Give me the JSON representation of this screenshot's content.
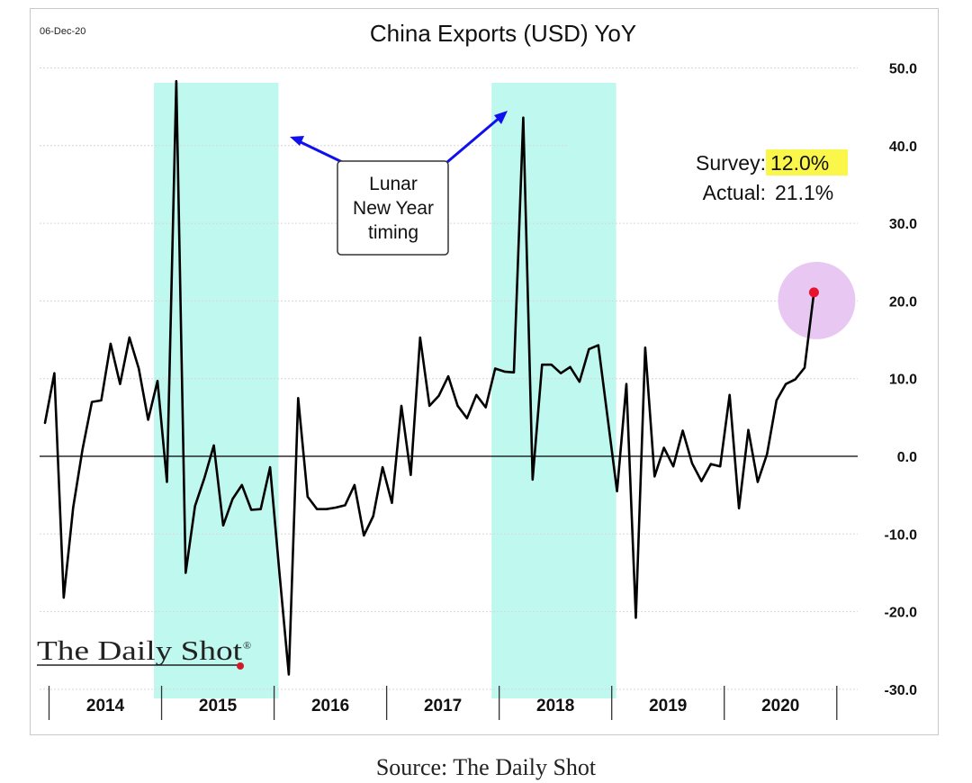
{
  "chart_data": {
    "type": "line",
    "title": "China Exports (USD) YoY",
    "date_stamp": "06-Dec-20",
    "xlabel": "",
    "ylabel": "",
    "ylim": [
      -30,
      50
    ],
    "y_ticks": [
      "50.0",
      "40.0",
      "30.0",
      "20.0",
      "10.0",
      "0.0",
      "-10.0",
      "-20.0",
      "-30.0"
    ],
    "x_year_labels": [
      "2014",
      "2015",
      "2016",
      "2017",
      "2018",
      "2019",
      "2020"
    ],
    "x_axis_side": "bottom",
    "y_axis_side": "right",
    "grid": true,
    "series": [
      {
        "name": "China Exports (USD) YoY",
        "color": "#000000",
        "start": "2014-01",
        "frequency": "monthly",
        "values": [
          4.3,
          10.7,
          -18.2,
          -6.6,
          0.9,
          7.0,
          7.2,
          14.5,
          9.3,
          15.3,
          11.3,
          4.7,
          9.7,
          -3.3,
          48.3,
          -15.0,
          -6.4,
          -2.8,
          1.4,
          -8.9,
          -5.5,
          -3.7,
          -6.9,
          -6.8,
          -1.4,
          -15.0,
          -28.1,
          7.5,
          -5.2,
          -6.8,
          -6.8,
          -6.6,
          -6.3,
          -3.7,
          -10.2,
          -7.7,
          -1.4,
          -6.0,
          6.5,
          -2.4,
          15.3,
          6.5,
          7.8,
          10.3,
          6.5,
          4.9,
          7.9,
          6.3,
          11.3,
          10.9,
          10.8,
          43.6,
          -3.0,
          11.8,
          11.8,
          10.7,
          11.5,
          9.6,
          13.8,
          14.3,
          4.9,
          -4.5,
          9.3,
          -20.8,
          14.0,
          -2.6,
          1.1,
          -1.3,
          3.3,
          -0.9,
          -3.2,
          -1.0,
          -1.3,
          7.9,
          -6.7,
          3.4,
          -3.3,
          0.3,
          7.2,
          9.3,
          9.9,
          11.4,
          21.1
        ]
      }
    ],
    "shaded_periods": [
      {
        "label": "Lunar New Year timing 2015",
        "start": "2015-01",
        "end": "2016-02"
      },
      {
        "label": "Lunar New Year timing 2018",
        "start": "2018-01",
        "end": "2019-02"
      }
    ],
    "annotations": {
      "callout_lines": [
        "Lunar",
        "New Year",
        "timing"
      ],
      "survey_label": "Survey:",
      "survey_value": "12.0%",
      "actual_label": "Actual:",
      "actual_value": "21.1%",
      "highlight_point_value": 21.1
    },
    "colors": {
      "line": "#000000",
      "shade": "#bff8ef",
      "survey_highlight": "#faf64a",
      "highlight_circle": "#e8c8f3",
      "highlight_dot": "#e8132e",
      "arrow": "#1010ee",
      "grid": "#d6d6d6"
    }
  },
  "branding": {
    "logo_text": "The Daily Shot",
    "registered": "®"
  },
  "footer": {
    "source": "Source: The Daily Shot"
  }
}
